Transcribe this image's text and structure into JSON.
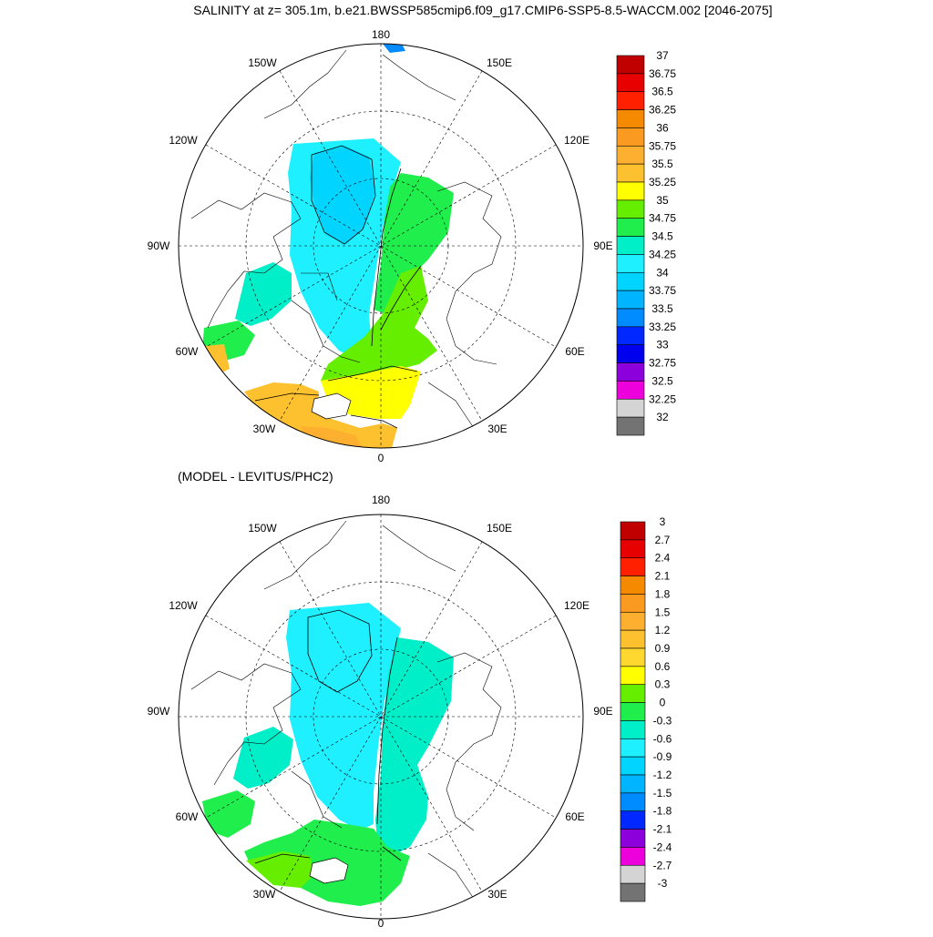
{
  "figure": {
    "title": "SALINITY at z= 305.1m, b.e21.BWSSP585cmip6.f09_g17.CMIP6-SSP5-8.5-WACCM.002 [2046-2075]",
    "subtitle": "(MODEL - LEVITUS/PHC2)"
  },
  "chart_data": [
    {
      "type": "heatmap",
      "projection": "north polar stereographic",
      "title": "SALINITY at z= 305.1m, b.e21.BWSSP585cmip6.f09_g17.CMIP6-SSP5-8.5-WACCM.002 [2046-2075]",
      "longitude_labels": [
        "180",
        "150E",
        "120E",
        "90E",
        "60E",
        "30E",
        "0",
        "30W",
        "60W",
        "90W",
        "120W",
        "150W"
      ],
      "colorbar": {
        "levels": [
          "37",
          "36.75",
          "36.5",
          "36.25",
          "36",
          "35.75",
          "35.5",
          "35.25",
          "35",
          "34.75",
          "34.5",
          "34.25",
          "34",
          "33.75",
          "33.5",
          "33.25",
          "33",
          "32.75",
          "32.5",
          "32.25",
          "32"
        ],
        "colors": [
          "#c00000",
          "#e60000",
          "#ff2000",
          "#f58a00",
          "#fa9a20",
          "#fdb02f",
          "#fdc12f",
          "#ffff00",
          "#66ee00",
          "#20ee4c",
          "#00eec8",
          "#1ef0ff",
          "#00d4ff",
          "#00b4ff",
          "#008bff",
          "#0028ff",
          "#0000ef",
          "#8c00dc",
          "#ec00dc",
          "#d4d4d4",
          "#737373"
        ]
      }
    },
    {
      "type": "heatmap",
      "projection": "north polar stereographic",
      "title": "(MODEL - LEVITUS/PHC2)",
      "longitude_labels": [
        "180",
        "150E",
        "120E",
        "90E",
        "60E",
        "30E",
        "0",
        "30W",
        "60W",
        "90W",
        "120W",
        "150W"
      ],
      "colorbar": {
        "levels": [
          "3",
          "2.7",
          "2.4",
          "2.1",
          "1.8",
          "1.5",
          "1.2",
          "0.9",
          "0.6",
          "0.3",
          "0",
          "-0.3",
          "-0.6",
          "-0.9",
          "-1.2",
          "-1.5",
          "-1.8",
          "-2.1",
          "-2.4",
          "-2.7",
          "-3"
        ],
        "colors": [
          "#c00000",
          "#e60000",
          "#ff2000",
          "#f58a00",
          "#fa9a20",
          "#fdb02f",
          "#fdc12f",
          "#ffd82f",
          "#ffff00",
          "#66ee00",
          "#20ee4c",
          "#00eec8",
          "#1ef0ff",
          "#00d4ff",
          "#00b4ff",
          "#008bff",
          "#0028ff",
          "#8c00dc",
          "#ec00dc",
          "#d4d4d4",
          "#737373"
        ]
      }
    }
  ]
}
